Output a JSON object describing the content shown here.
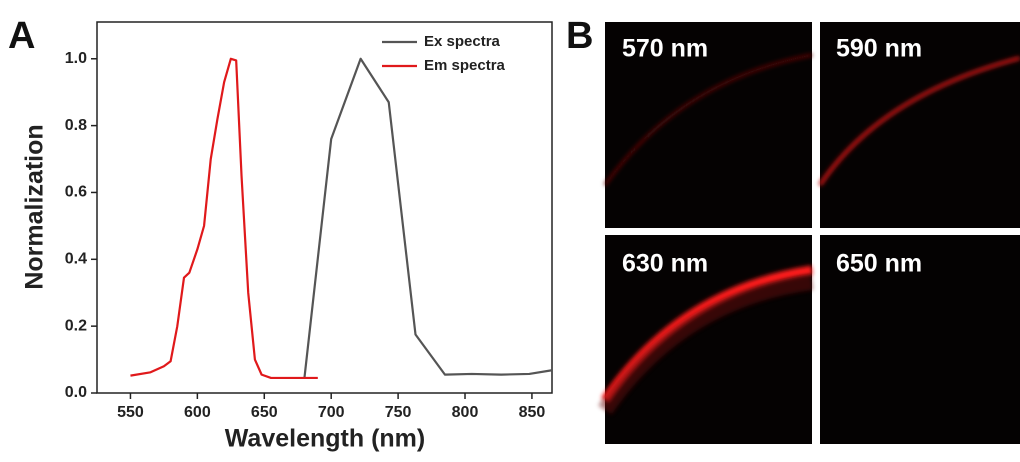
{
  "chart_data": {
    "type": "line",
    "xlabel": "Wavelength (nm)",
    "ylabel": "Normalization",
    "xlim": [
      525,
      865
    ],
    "ylim": [
      0,
      1.11
    ],
    "xticks": [
      550,
      600,
      650,
      700,
      750,
      800,
      850
    ],
    "yticks": [
      {
        "value": 0,
        "label": "0.0"
      },
      0.2,
      0.4,
      0.6,
      0.8,
      {
        "value": 1,
        "label": "1.0"
      }
    ],
    "legend": "upper right",
    "series": [
      {
        "name": "Ex spectra",
        "color": "#555555",
        "x": [
          680,
          700,
          722,
          743,
          763,
          785,
          805,
          827,
          848,
          865
        ],
        "values": [
          0.045,
          0.76,
          1.0,
          0.87,
          0.175,
          0.055,
          0.057,
          0.055,
          0.057,
          0.068
        ]
      },
      {
        "name": "Em spectra",
        "color": "#e0191b",
        "x": [
          550,
          565,
          575,
          580,
          585,
          590,
          594,
          600,
          605,
          610,
          615,
          620,
          625,
          629,
          633,
          638,
          643,
          648,
          655,
          675,
          690
        ],
        "values": [
          0.052,
          0.062,
          0.08,
          0.095,
          0.2,
          0.345,
          0.36,
          0.43,
          0.5,
          0.7,
          0.82,
          0.93,
          1.0,
          0.995,
          0.65,
          0.3,
          0.1,
          0.055,
          0.045,
          0.045,
          0.045
        ]
      }
    ]
  },
  "panels": {
    "a": "A",
    "b": "B",
    "images": [
      "570 nm",
      "590 nm",
      "630 nm",
      "650 nm"
    ]
  }
}
